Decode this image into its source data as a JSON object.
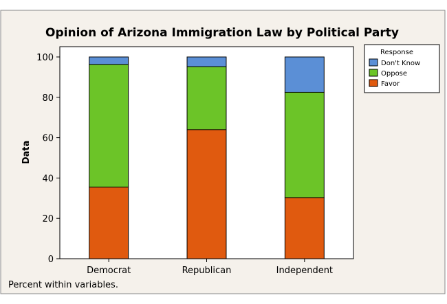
{
  "chart_data": {
    "type": "bar",
    "stacked": true,
    "title": "Opinion of Arizona Immigration Law by Political Party",
    "xlabel": "",
    "ylabel": "Data",
    "ylim": [
      0,
      100
    ],
    "yticks": [
      0,
      20,
      40,
      60,
      80,
      100
    ],
    "categories": [
      "Democrat",
      "Republican",
      "Independent"
    ],
    "series": [
      {
        "name": "Favor",
        "color": "#e05a0f",
        "values": [
          35.5,
          64,
          30.3
        ]
      },
      {
        "name": "Oppose",
        "color": "#6cc428",
        "values": [
          60.8,
          31.2,
          52.2
        ]
      },
      {
        "name": "Don't Know",
        "color": "#5b8fd6",
        "values": [
          3.7,
          4.8,
          17.5
        ]
      }
    ],
    "legend": {
      "title": "Response",
      "placement": "top-right",
      "order": [
        "Don't Know",
        "Oppose",
        "Favor"
      ]
    },
    "footnote": "Percent within variables.",
    "background_color": "#f5f1eb",
    "plot_background_color": "#ffffff"
  }
}
